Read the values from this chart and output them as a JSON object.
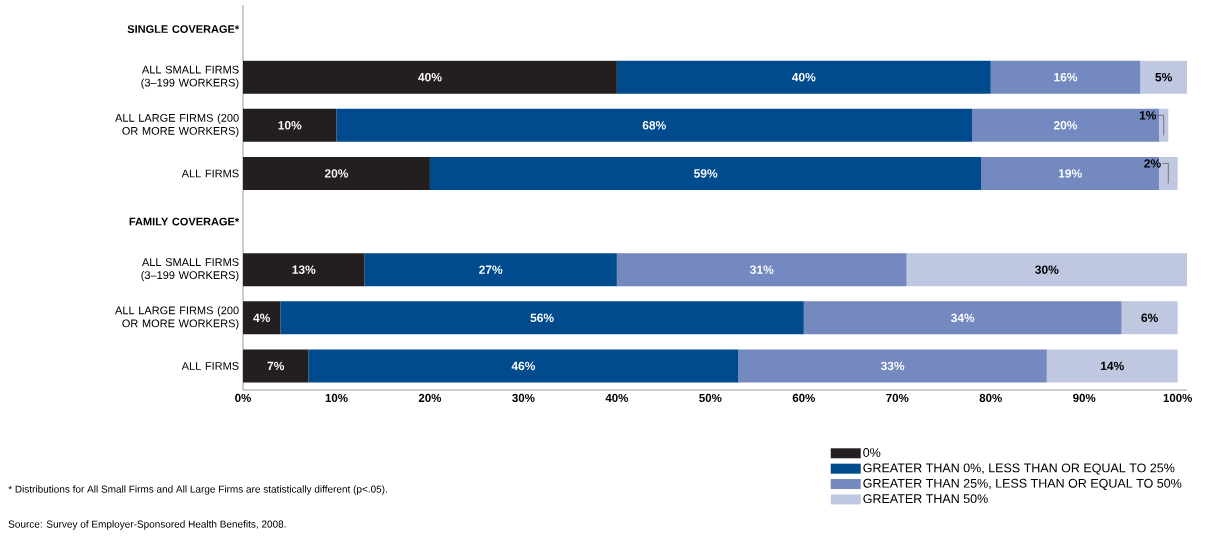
{
  "chart_data": {
    "type": "bar",
    "orientation": "horizontal",
    "stacked": true,
    "categories": [
      "SINGLE COVERAGE*",
      "ALL SMALL FIRMS (3–199 WORKERS)",
      "ALL LARGE FIRMS (200 OR MORE WORKERS)",
      "ALL FIRMS",
      "FAMILY COVERAGE*",
      "ALL SMALL FIRMS (3–199 WORKERS)",
      "ALL LARGE FIRMS (200 OR MORE WORKERS)",
      "ALL FIRMS"
    ],
    "series": [
      {
        "name": "0%",
        "color": "#231f20",
        "values": [
          null,
          40,
          10,
          20,
          null,
          13,
          4,
          7
        ],
        "value_labels": [
          null,
          "40%",
          "10%",
          "20%",
          null,
          "13%",
          "4%",
          "7%"
        ]
      },
      {
        "name": "GREATER THAN 0%, LESS THAN OR EQUAL TO 25%",
        "color": "#004b8d",
        "values": [
          null,
          40,
          68,
          59,
          null,
          27,
          56,
          46
        ],
        "value_labels": [
          null,
          "40%",
          "68%",
          "59%",
          null,
          "27%",
          "56%",
          "46%"
        ]
      },
      {
        "name": "GREATER THAN 25%, LESS THAN OR EQUAL TO 50%",
        "color": "#7389bf",
        "values": [
          null,
          16,
          20,
          19,
          null,
          31,
          34,
          33
        ],
        "value_labels": [
          null,
          "16%",
          "20%",
          "19%",
          null,
          "31%",
          "34%",
          "33%"
        ]
      },
      {
        "name": "GREATER THAN 50%",
        "color": "#bfc7e1",
        "values": [
          null,
          5,
          1,
          2,
          null,
          30,
          6,
          14
        ],
        "value_labels": [
          null,
          "5%",
          "1%",
          "2%",
          null,
          "30%",
          "6%",
          "14%"
        ]
      }
    ],
    "xlim": [
      0,
      101
    ],
    "xticks": [
      {
        "value": 0,
        "label": "0%"
      },
      {
        "value": 10,
        "label": "10%"
      },
      {
        "value": 20,
        "label": "20%"
      },
      {
        "value": 30,
        "label": "30%"
      },
      {
        "value": 40,
        "label": "40%"
      },
      {
        "value": 50,
        "label": "50%"
      },
      {
        "value": 60,
        "label": "60%"
      },
      {
        "value": 70,
        "label": "70%"
      },
      {
        "value": 80,
        "label": "80%"
      },
      {
        "value": 90,
        "label": "90%"
      },
      {
        "value": 100,
        "label": "100%"
      }
    ],
    "legend": "bottom right",
    "annotations": [
      "* Distributions for All Small Firms and All Large Firms are statistically different (p<.05).",
      "Source: Survey of Employer-Sponsored Health Benefits, 2008."
    ]
  }
}
